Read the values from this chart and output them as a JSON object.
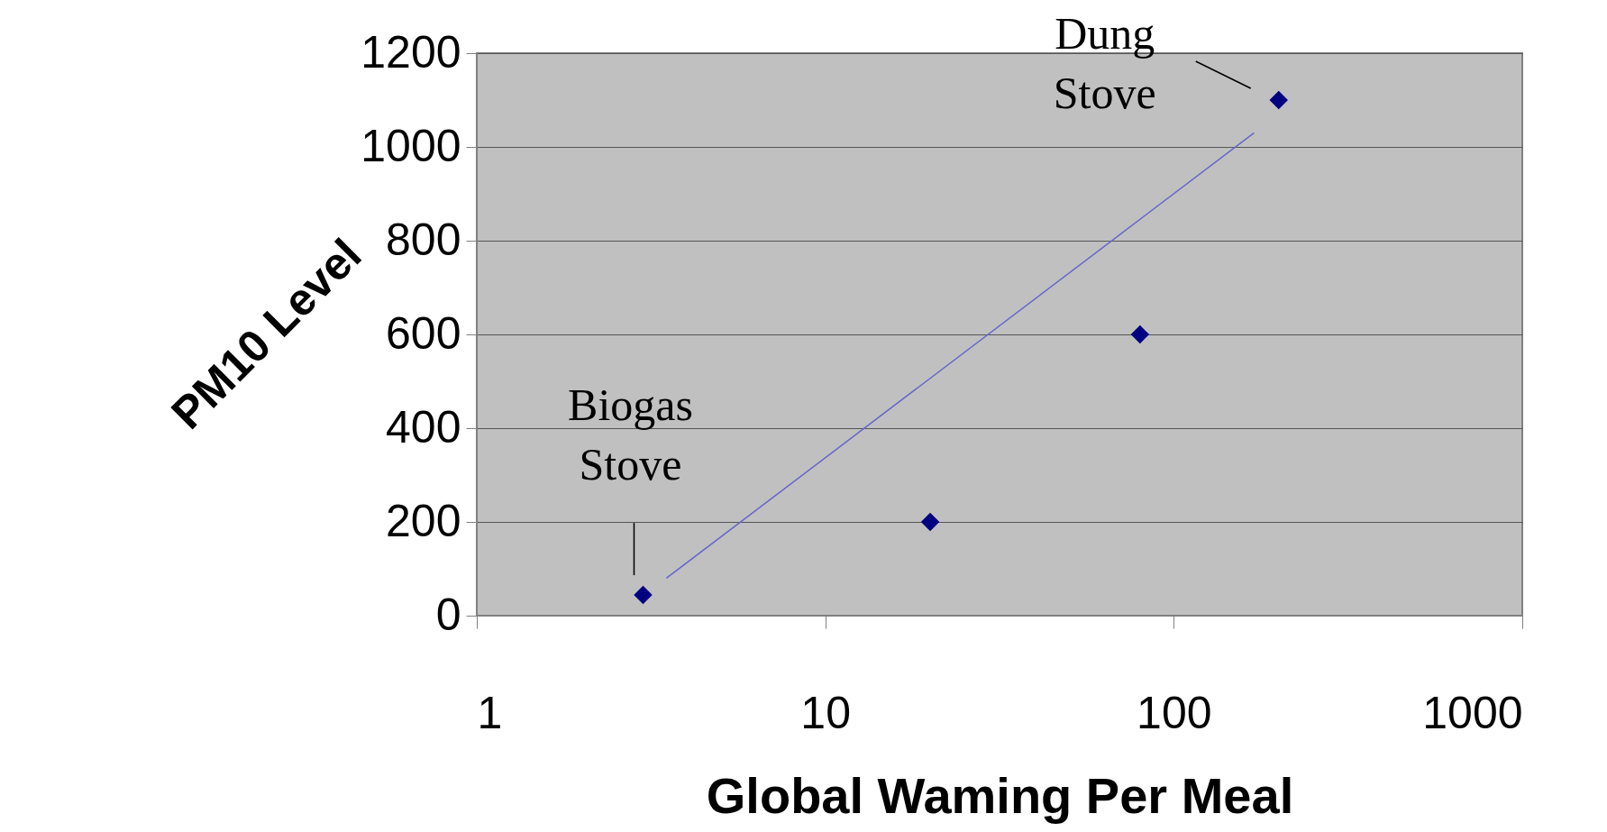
{
  "chart_data": {
    "type": "scatter",
    "xlabel": "Global Waming Per Meal",
    "ylabel": "PM10 Level",
    "log": "x",
    "xlim": [
      1,
      1000
    ],
    "xticks": [
      1,
      10,
      100,
      1000
    ],
    "ylim": [
      0,
      1200
    ],
    "yticks": [
      0,
      200,
      400,
      600,
      800,
      1000,
      1200
    ],
    "grid": "y",
    "series": [
      {
        "marker": "diamond",
        "color": "#000080",
        "x": [
          3,
          20,
          80,
          200
        ],
        "values": [
          44,
          200,
          600,
          1100
        ]
      },
      {
        "type": "line",
        "color": "#6666cc",
        "x": [
          170,
          3.5
        ],
        "values": [
          1030,
          80
        ]
      }
    ],
    "annotations": [
      {
        "text": "Dung Stove",
        "x": 200,
        "y": 1100
      },
      {
        "text": "Biogas Stove",
        "x": 3,
        "y": 44
      }
    ]
  }
}
